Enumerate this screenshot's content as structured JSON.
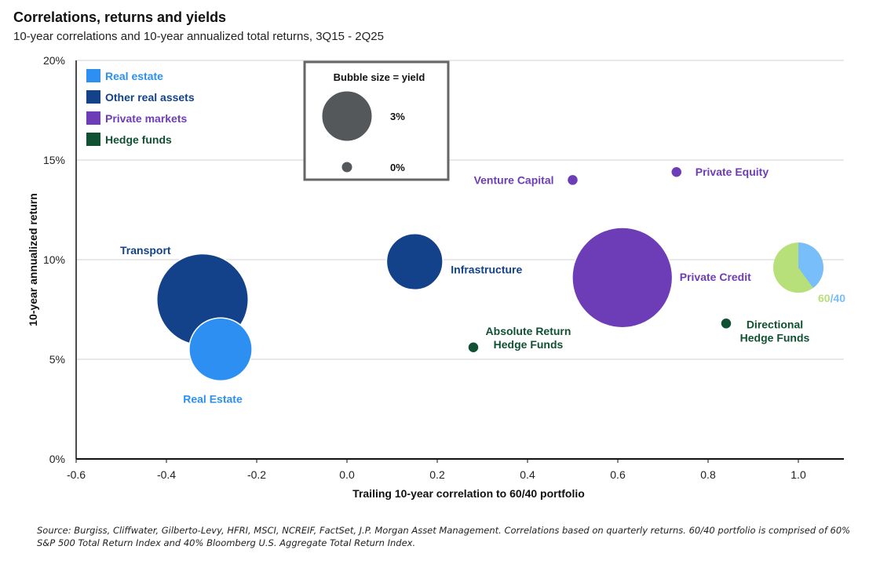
{
  "header": {
    "title": "Correlations, returns and yields",
    "subtitle": "10-year correlations and 10-year annualized total returns, 3Q15 - 2Q25"
  },
  "footnote": "Source: Burgiss, Cliffwater, Gilberto-Levy, HFRI, MSCI, NCREIF, FactSet, J.P. Morgan Asset Management. Correlations based on quarterly returns. 60/40 portfolio is comprised of 60% S&P 500 Total Return Index and 40% Bloomberg U.S. Aggregate Total Return Index.",
  "colors": {
    "real_estate": "#2E8FF2",
    "other_real_assets": "#13428A",
    "private_markets": "#6D3DB8",
    "hedge_funds": "#0F5132",
    "sixty_forty_equity": "#B8E07A",
    "sixty_forty_bond": "#78BEFA",
    "bubble_key": "#55585B"
  },
  "chart_data": {
    "type": "scatter",
    "subtype": "bubble",
    "title": "Correlations, returns and yields",
    "subtitle": "10-year correlations and 10-year annualized total returns, 3Q15 - 2Q25",
    "xlabel": "Trailing 10-year correlation to 60/40 portfolio",
    "ylabel": "10-year annualized return",
    "xlim": [
      -0.6,
      1.1
    ],
    "ylim": [
      0,
      20
    ],
    "x_ticks": [
      "-0.6",
      "-0.4",
      "-0.2",
      "0.0",
      "0.2",
      "0.4",
      "0.6",
      "0.8",
      "1.0"
    ],
    "x_tick_values": [
      -0.6,
      -0.4,
      -0.2,
      0.0,
      0.2,
      0.4,
      0.6,
      0.8,
      1.0
    ],
    "y_ticks": [
      "0%",
      "5%",
      "10%",
      "15%",
      "20%"
    ],
    "y_tick_values": [
      0,
      5,
      10,
      15,
      20
    ],
    "grid": "horizontal",
    "legend": {
      "placement": "top-left",
      "entries": [
        {
          "label": "Real estate",
          "category": "real_estate"
        },
        {
          "label": "Other real assets",
          "category": "other_real_assets"
        },
        {
          "label": "Private markets",
          "category": "private_markets"
        },
        {
          "label": "Hedge funds",
          "category": "hedge_funds"
        }
      ]
    },
    "size_key": {
      "title": "Bubble size = yield",
      "entries": [
        {
          "label": "3%",
          "yield": 3
        },
        {
          "label": "0%",
          "yield": 0
        }
      ]
    },
    "points": [
      {
        "name": "Transport",
        "category": "other_real_assets",
        "x": -0.32,
        "y": 8.0,
        "yield": 10.3,
        "label_pos": "upper-left"
      },
      {
        "name": "Real Estate",
        "category": "real_estate",
        "x": -0.28,
        "y": 5.5,
        "yield": 4.8,
        "label_pos": "below"
      },
      {
        "name": "Infrastructure",
        "category": "other_real_assets",
        "x": 0.15,
        "y": 9.9,
        "yield": 3.8,
        "label_pos": "right"
      },
      {
        "name": "Absolute Return Hedge Funds",
        "category": "hedge_funds",
        "x": 0.28,
        "y": 5.6,
        "yield": 0,
        "label_pos": "upper-right"
      },
      {
        "name": "Venture Capital",
        "category": "private_markets",
        "x": 0.5,
        "y": 14.0,
        "yield": 0,
        "label_pos": "left"
      },
      {
        "name": "Private Credit",
        "category": "private_markets",
        "x": 0.61,
        "y": 9.1,
        "yield": 12.4,
        "label_pos": "right"
      },
      {
        "name": "Private Equity",
        "category": "private_markets",
        "x": 0.73,
        "y": 14.4,
        "yield": 0,
        "label_pos": "right"
      },
      {
        "name": "Directional Hedge Funds",
        "category": "hedge_funds",
        "x": 0.84,
        "y": 6.8,
        "yield": 0,
        "label_pos": "right"
      },
      {
        "name": "60/40",
        "category": "sixty_forty",
        "x": 1.0,
        "y": 9.6,
        "yield": 3.0,
        "label_pos": "lower-right",
        "pie": {
          "equity_pct": 60,
          "bond_pct": 40
        }
      }
    ],
    "sixty_forty_label": {
      "left": "60",
      "sep": "/",
      "right": "40"
    }
  }
}
